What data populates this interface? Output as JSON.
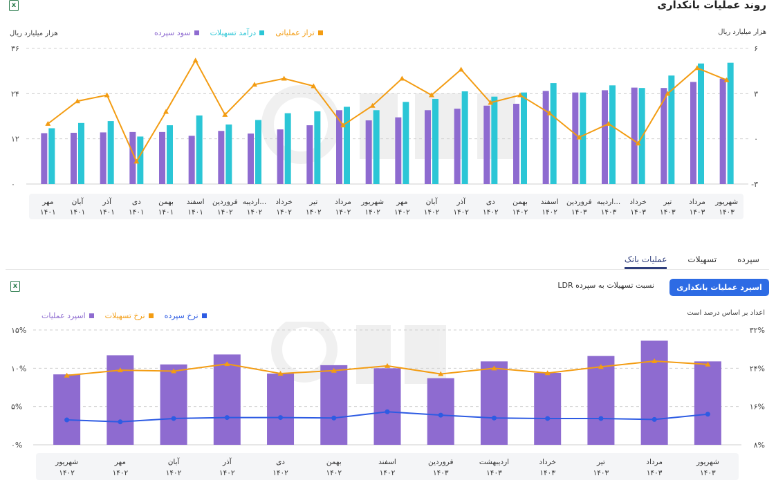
{
  "header": {
    "title": "روند عملیات بانکداری",
    "export_icon": "excel-icon"
  },
  "top_chart": {
    "left_axis_label": "هزار میلیارد ریال",
    "right_axis_label": "هزار میلیارد ریال",
    "legend": [
      {
        "name": "تراز عملیاتی",
        "color": "#f39c12"
      },
      {
        "name": "درآمد تسهیلات",
        "color": "#2bc6d6"
      },
      {
        "name": "سود سپرده",
        "color": "#8e6bd0"
      }
    ],
    "left_ticks": [
      "۳۶",
      "۲۴",
      "۱۲",
      "۰"
    ],
    "right_ticks": [
      "۶",
      "۳",
      "۰",
      "-۳"
    ]
  },
  "tabs": [
    "سپرده",
    "تسهیلات",
    "عملیات بانک"
  ],
  "segment": {
    "active": "اسپرد عملیات بانکداری",
    "other": "نسبت تسهیلات به سپرده LDR"
  },
  "bottom_chart": {
    "note": "اعداد بر اساس درصد است",
    "legend": [
      {
        "name": "نرخ سپرده",
        "color": "#2d5be3"
      },
      {
        "name": "نرخ تسهیلات",
        "color": "#f39c12"
      },
      {
        "name": "اسپرد عملیات",
        "color": "#8e6bd0"
      }
    ],
    "left_ticks": [
      "۱۵%",
      "۱۰%",
      "۵%",
      "۰%"
    ],
    "right_ticks": [
      "۳۲%",
      "۲۴%",
      "۱۶%",
      "۸%"
    ]
  },
  "chart_data": [
    {
      "type": "bar",
      "title": "روند عملیات بانکداری",
      "categories": [
        [
          "مهر",
          "۱۴۰۱"
        ],
        [
          "آبان",
          "۱۴۰۱"
        ],
        [
          "آذر",
          "۱۴۰۱"
        ],
        [
          "دی",
          "۱۴۰۱"
        ],
        [
          "بهمن",
          "۱۴۰۱"
        ],
        [
          "اسفند",
          "۱۴۰۱"
        ],
        [
          "فروردین",
          "۱۴۰۲"
        ],
        [
          "اردیبه...",
          "۱۴۰۲"
        ],
        [
          "خرداد",
          "۱۴۰۲"
        ],
        [
          "تیر",
          "۱۴۰۲"
        ],
        [
          "مرداد",
          "۱۴۰۲"
        ],
        [
          "شهریور",
          "۱۴۰۲"
        ],
        [
          "مهر",
          "۱۴۰۲"
        ],
        [
          "آبان",
          "۱۴۰۲"
        ],
        [
          "آذر",
          "۱۴۰۲"
        ],
        [
          "دی",
          "۱۴۰۲"
        ],
        [
          "بهمن",
          "۱۴۰۲"
        ],
        [
          "اسفند",
          "۱۴۰۲"
        ],
        [
          "فروردین",
          "۱۴۰۳"
        ],
        [
          "اردیبه...",
          "۱۴۰۳"
        ],
        [
          "خرداد",
          "۱۴۰۳"
        ],
        [
          "تیر",
          "۱۴۰۳"
        ],
        [
          "مرداد",
          "۱۴۰۳"
        ],
        [
          "شهریور",
          "۱۴۰۳"
        ]
      ],
      "series": [
        {
          "name": "سود سپرده",
          "axis": "left",
          "color": "#8e6bd0",
          "values": [
            13.5,
            13.6,
            13.7,
            13.8,
            13.8,
            12.8,
            14.1,
            13.4,
            14.5,
            15.6,
            19.6,
            16.9,
            17.7,
            19.6,
            20.0,
            20.8,
            21.3,
            24.7,
            24.3,
            24.9,
            25.6,
            25.5,
            27.1,
            28.0
          ]
        },
        {
          "name": "درآمد تسهیلات",
          "axis": "left",
          "color": "#2bc6d6",
          "values": [
            14.8,
            16.2,
            16.7,
            12.6,
            15.6,
            18.2,
            15.8,
            17.0,
            18.8,
            19.3,
            20.5,
            19.6,
            21.8,
            22.6,
            24.6,
            23.2,
            24.3,
            26.8,
            24.3,
            26.2,
            25.5,
            28.8,
            32.0,
            32.2
          ]
        },
        {
          "name": "تراز عملیاتی",
          "axis": "right",
          "type": "line",
          "color": "#f39c12",
          "values": [
            1.0,
            2.5,
            2.9,
            -1.5,
            1.8,
            5.2,
            1.6,
            3.6,
            4.0,
            3.5,
            0.9,
            2.2,
            4.0,
            2.9,
            4.6,
            2.4,
            2.9,
            1.7,
            0.1,
            1.0,
            -0.3,
            3.0,
            4.7,
            3.9
          ]
        }
      ],
      "ylim_left": [
        0,
        36
      ],
      "ylim_right": [
        -3,
        6
      ]
    },
    {
      "type": "bar",
      "title": "اسپرد عملیات بانکداری",
      "categories": [
        [
          "شهریور",
          "۱۴۰۲"
        ],
        [
          "مهر",
          "۱۴۰۲"
        ],
        [
          "آبان",
          "۱۴۰۲"
        ],
        [
          "آذر",
          "۱۴۰۲"
        ],
        [
          "دی",
          "۱۴۰۲"
        ],
        [
          "بهمن",
          "۱۴۰۲"
        ],
        [
          "اسفند",
          "۱۴۰۲"
        ],
        [
          "فروردین",
          "۱۴۰۳"
        ],
        [
          "اردیبهشت",
          "۱۴۰۳"
        ],
        [
          "خرداد",
          "۱۴۰۳"
        ],
        [
          "تیر",
          "۱۴۰۳"
        ],
        [
          "مرداد",
          "۱۴۰۳"
        ],
        [
          "شهریور",
          "۱۴۰۳"
        ]
      ],
      "series": [
        {
          "name": "اسپرد عملیات",
          "axis": "left",
          "color": "#8e6bd0",
          "values": [
            9.2,
            11.7,
            10.5,
            11.8,
            9.3,
            10.4,
            10.0,
            8.7,
            10.9,
            9.4,
            11.6,
            13.6,
            10.9
          ]
        },
        {
          "name": "نرخ تسهیلات",
          "axis": "right",
          "type": "line",
          "color": "#f39c12",
          "values": [
            22.5,
            23.6,
            23.4,
            24.9,
            22.9,
            23.5,
            24.5,
            22.8,
            24.0,
            23.0,
            24.3,
            25.5,
            24.8
          ]
        },
        {
          "name": "نرخ سپرده",
          "axis": "right",
          "type": "line",
          "color": "#2d5be3",
          "values": [
            13.2,
            12.8,
            13.5,
            13.7,
            13.7,
            13.6,
            14.9,
            14.2,
            13.6,
            13.5,
            13.5,
            13.3,
            14.4
          ]
        }
      ],
      "ylim_left": [
        0,
        15
      ],
      "ylim_right": [
        8,
        32
      ]
    }
  ]
}
